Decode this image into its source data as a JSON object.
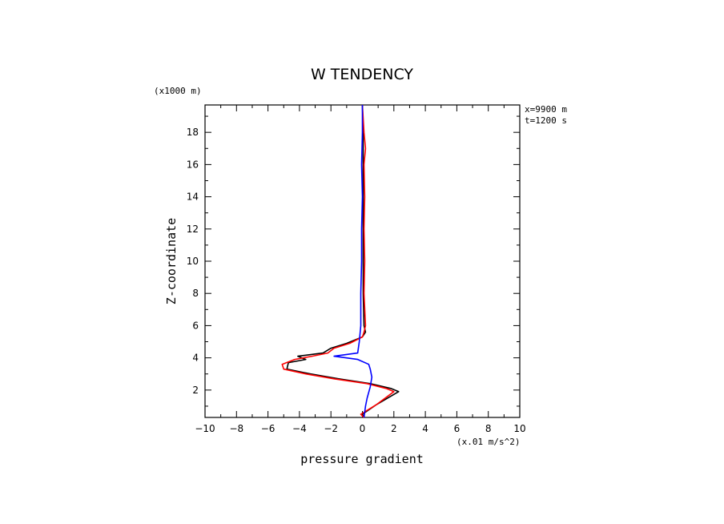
{
  "chart_data": {
    "type": "line",
    "title": "W TENDENCY",
    "xlabel": "pressure gradient",
    "ylabel": "Z-coordinate",
    "x_units": "(x.01 m/s^2)",
    "y_units": "(x1000 m)",
    "annotations": [
      "x=9900 m",
      "t=1200 s"
    ],
    "xlim": [
      -10,
      10
    ],
    "ylim": [
      0.3,
      19.7
    ],
    "xticks": [
      -10,
      -8,
      -6,
      -4,
      -2,
      0,
      2,
      4,
      6,
      8,
      10
    ],
    "yticks": [
      2,
      4,
      6,
      8,
      10,
      12,
      14,
      16,
      18
    ],
    "grid": false,
    "series": [
      {
        "color": "#000000",
        "points": [
          [
            0.1,
            0.3
          ],
          [
            0.0,
            0.5
          ],
          [
            0.9,
            1.1
          ],
          [
            2.3,
            1.9
          ],
          [
            1.8,
            2.1
          ],
          [
            0.5,
            2.4
          ],
          [
            -1.5,
            2.7
          ],
          [
            -3.3,
            3.0
          ],
          [
            -4.8,
            3.3
          ],
          [
            -4.7,
            3.7
          ],
          [
            -3.6,
            3.9
          ],
          [
            -4.1,
            4.1
          ],
          [
            -2.5,
            4.3
          ],
          [
            -2.0,
            4.6
          ],
          [
            -1.0,
            4.9
          ],
          [
            0.0,
            5.3
          ],
          [
            0.2,
            5.6
          ],
          [
            0.1,
            6.0
          ],
          [
            0.05,
            8
          ],
          [
            0.05,
            10
          ],
          [
            0.05,
            12
          ],
          [
            0.05,
            14
          ],
          [
            0.05,
            16
          ],
          [
            0.05,
            18
          ],
          [
            0.0,
            19.7
          ]
        ]
      },
      {
        "color": "#ff0000",
        "points": [
          [
            0.1,
            0.3
          ],
          [
            -0.1,
            0.5
          ],
          [
            0.9,
            1.1
          ],
          [
            2.0,
            1.9
          ],
          [
            1.5,
            2.1
          ],
          [
            0.3,
            2.4
          ],
          [
            -1.8,
            2.7
          ],
          [
            -3.6,
            3.0
          ],
          [
            -5.0,
            3.3
          ],
          [
            -5.1,
            3.6
          ],
          [
            -4.3,
            3.9
          ],
          [
            -3.2,
            4.1
          ],
          [
            -2.2,
            4.3
          ],
          [
            -1.8,
            4.6
          ],
          [
            -0.8,
            4.9
          ],
          [
            0.0,
            5.3
          ],
          [
            0.1,
            5.6
          ],
          [
            0.2,
            6.0
          ],
          [
            0.1,
            8
          ],
          [
            0.15,
            10
          ],
          [
            0.1,
            12
          ],
          [
            0.15,
            14
          ],
          [
            0.1,
            16
          ],
          [
            0.2,
            17
          ],
          [
            0.1,
            18
          ],
          [
            0.0,
            19.7
          ]
        ]
      },
      {
        "color": "#0000ff",
        "points": [
          [
            0.1,
            0.3
          ],
          [
            0.2,
            1.0
          ],
          [
            0.3,
            1.5
          ],
          [
            0.5,
            2.2
          ],
          [
            0.6,
            2.8
          ],
          [
            0.5,
            3.3
          ],
          [
            0.4,
            3.6
          ],
          [
            -0.3,
            3.9
          ],
          [
            -1.8,
            4.1
          ],
          [
            -0.3,
            4.3
          ],
          [
            -0.2,
            5.0
          ],
          [
            -0.1,
            6.0
          ],
          [
            -0.1,
            8
          ],
          [
            -0.05,
            10
          ],
          [
            -0.05,
            12
          ],
          [
            0.0,
            14
          ],
          [
            -0.05,
            16
          ],
          [
            0.0,
            18
          ],
          [
            0.0,
            19.7
          ]
        ]
      }
    ]
  }
}
